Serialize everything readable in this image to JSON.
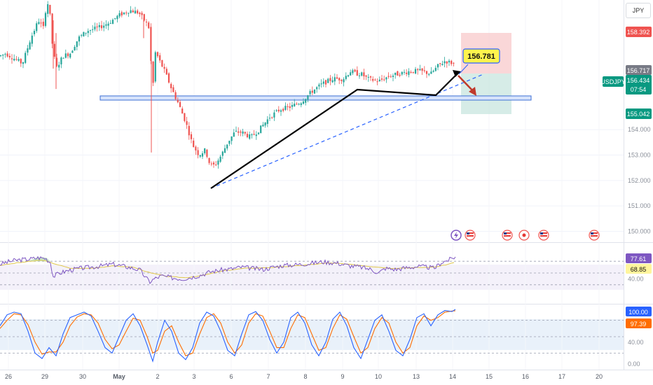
{
  "currency_button": "JPY",
  "symbol": "USDJPY",
  "countdown": "07:54",
  "callout_price": "156.781",
  "price_labels": {
    "stop": "158.392",
    "entry": "156.717",
    "current": "156.434",
    "target": "155.042"
  },
  "colors": {
    "up": "#26a69a",
    "down": "#ef5350",
    "rsi": "#7e57c2",
    "rsi_ma": "#e0c84a",
    "stoch_k": "#2962ff",
    "stoch_d": "#ff6d00",
    "stop_zone": "#f8c9cb",
    "target_zone": "#c8e6df",
    "trendline": "#1565c0"
  },
  "chart_data": [
    {
      "type": "candlestick",
      "symbol": "USDJPY",
      "ylim": [
        149.6,
        159.1
      ],
      "y_ticks": [
        "150.000",
        "151.000",
        "152.000",
        "153.000",
        "154.000"
      ],
      "x_ticks": [
        "26",
        "29",
        "30",
        "May",
        "2",
        "3",
        "6",
        "7",
        "8",
        "9",
        "10",
        "13",
        "14",
        "15",
        "16",
        "17",
        "20"
      ],
      "close_path": [
        [
          0,
          156.9
        ],
        [
          8,
          157.0
        ],
        [
          20,
          156.8
        ],
        [
          32,
          156.6
        ],
        [
          44,
          157.6
        ],
        [
          55,
          158.3
        ],
        [
          62,
          158.0
        ],
        [
          66,
          158.9
        ],
        [
          70,
          159.0
        ],
        [
          74,
          157.5
        ],
        [
          80,
          156.4
        ],
        [
          90,
          156.9
        ],
        [
          100,
          157.0
        ],
        [
          112,
          157.6
        ],
        [
          125,
          157.9
        ],
        [
          140,
          158.0
        ],
        [
          155,
          158.2
        ],
        [
          170,
          158.5
        ],
        [
          185,
          158.7
        ],
        [
          198,
          158.6
        ],
        [
          206,
          158.3
        ],
        [
          212,
          158.1
        ],
        [
          218,
          155.6
        ],
        [
          222,
          157.1
        ],
        [
          226,
          156.8
        ],
        [
          235,
          156.3
        ],
        [
          245,
          155.6
        ],
        [
          255,
          155.0
        ],
        [
          265,
          154.3
        ],
        [
          275,
          153.4
        ],
        [
          284,
          153.0
        ],
        [
          293,
          153.2
        ],
        [
          300,
          152.6
        ],
        [
          307,
          152.6
        ],
        [
          316,
          153.0
        ],
        [
          325,
          153.5
        ],
        [
          335,
          153.9
        ],
        [
          345,
          153.9
        ],
        [
          358,
          153.7
        ],
        [
          370,
          154.0
        ],
        [
          385,
          154.5
        ],
        [
          400,
          154.8
        ],
        [
          415,
          154.9
        ],
        [
          430,
          155.1
        ],
        [
          445,
          155.5
        ],
        [
          460,
          155.8
        ],
        [
          475,
          156.0
        ],
        [
          490,
          156.0
        ],
        [
          500,
          156.3
        ],
        [
          508,
          156.2
        ],
        [
          515,
          156.2
        ],
        [
          525,
          156.0
        ],
        [
          540,
          155.9
        ],
        [
          555,
          156.1
        ],
        [
          570,
          156.2
        ],
        [
          585,
          156.3
        ],
        [
          600,
          156.3
        ],
        [
          615,
          156.2
        ],
        [
          625,
          156.5
        ],
        [
          635,
          156.7
        ],
        [
          648,
          156.6
        ]
      ],
      "spikes": [
        [
          80,
          157.8,
          155.6
        ],
        [
          76,
          158.3,
          156.4
        ],
        [
          216,
          158.0,
          154.0
        ],
        [
          216,
          156.0,
          153.1
        ],
        [
          205,
          158.4,
          157.6
        ]
      ]
    },
    {
      "type": "line",
      "name": "RSI",
      "y_ticks": [
        "40.00"
      ],
      "last_values": [
        "77.61",
        "68.85"
      ],
      "rsi": [
        [
          0,
          65
        ],
        [
          15,
          70
        ],
        [
          25,
          72
        ],
        [
          35,
          73
        ],
        [
          45,
          74
        ],
        [
          55,
          76
        ],
        [
          65,
          75
        ],
        [
          72,
          68
        ],
        [
          76,
          44
        ],
        [
          85,
          50
        ],
        [
          100,
          55
        ],
        [
          115,
          58
        ],
        [
          130,
          60
        ],
        [
          145,
          62
        ],
        [
          160,
          65
        ],
        [
          175,
          62
        ],
        [
          190,
          58
        ],
        [
          200,
          55
        ],
        [
          208,
          42
        ],
        [
          214,
          35
        ],
        [
          220,
          40
        ],
        [
          230,
          45
        ],
        [
          245,
          42
        ],
        [
          260,
          40
        ],
        [
          270,
          42
        ],
        [
          285,
          46
        ],
        [
          300,
          52
        ],
        [
          315,
          55
        ],
        [
          330,
          57
        ],
        [
          345,
          60
        ],
        [
          360,
          58
        ],
        [
          375,
          56
        ],
        [
          390,
          60
        ],
        [
          405,
          63
        ],
        [
          420,
          64
        ],
        [
          440,
          66
        ],
        [
          460,
          69
        ],
        [
          480,
          67
        ],
        [
          500,
          62
        ],
        [
          515,
          60
        ],
        [
          530,
          56
        ],
        [
          540,
          50
        ],
        [
          550,
          58
        ],
        [
          565,
          56
        ],
        [
          580,
          59
        ],
        [
          595,
          61
        ],
        [
          610,
          60
        ],
        [
          620,
          58
        ],
        [
          630,
          68
        ],
        [
          640,
          72
        ],
        [
          650,
          77.6
        ]
      ],
      "ma": [
        [
          0,
          63
        ],
        [
          30,
          68
        ],
        [
          60,
          72
        ],
        [
          80,
          65
        ],
        [
          100,
          58
        ],
        [
          130,
          58
        ],
        [
          160,
          62
        ],
        [
          190,
          60
        ],
        [
          215,
          50
        ],
        [
          240,
          44
        ],
        [
          265,
          42
        ],
        [
          290,
          46
        ],
        [
          320,
          54
        ],
        [
          350,
          58
        ],
        [
          380,
          59
        ],
        [
          410,
          61
        ],
        [
          440,
          64
        ],
        [
          470,
          67
        ],
        [
          500,
          65
        ],
        [
          530,
          61
        ],
        [
          560,
          58
        ],
        [
          590,
          59
        ],
        [
          620,
          60
        ],
        [
          640,
          65
        ],
        [
          650,
          68.9
        ]
      ]
    },
    {
      "type": "line",
      "name": "Stochastic",
      "y_ticks": [
        "40.00",
        "0.00"
      ],
      "last_values": [
        "100.00",
        "97.39"
      ],
      "k": [
        [
          0,
          70
        ],
        [
          10,
          90
        ],
        [
          20,
          95
        ],
        [
          30,
          92
        ],
        [
          40,
          60
        ],
        [
          50,
          20
        ],
        [
          60,
          10
        ],
        [
          70,
          30
        ],
        [
          80,
          15
        ],
        [
          90,
          55
        ],
        [
          100,
          85
        ],
        [
          110,
          90
        ],
        [
          120,
          95
        ],
        [
          130,
          88
        ],
        [
          140,
          60
        ],
        [
          150,
          30
        ],
        [
          160,
          20
        ],
        [
          170,
          50
        ],
        [
          180,
          80
        ],
        [
          190,
          92
        ],
        [
          200,
          70
        ],
        [
          210,
          35
        ],
        [
          218,
          5
        ],
        [
          225,
          40
        ],
        [
          235,
          80
        ],
        [
          245,
          60
        ],
        [
          255,
          20
        ],
        [
          265,
          8
        ],
        [
          275,
          30
        ],
        [
          285,
          75
        ],
        [
          295,
          95
        ],
        [
          305,
          88
        ],
        [
          315,
          60
        ],
        [
          325,
          25
        ],
        [
          335,
          15
        ],
        [
          345,
          55
        ],
        [
          355,
          90
        ],
        [
          365,
          96
        ],
        [
          375,
          80
        ],
        [
          385,
          45
        ],
        [
          395,
          20
        ],
        [
          405,
          40
        ],
        [
          415,
          85
        ],
        [
          425,
          95
        ],
        [
          435,
          75
        ],
        [
          445,
          35
        ],
        [
          455,
          15
        ],
        [
          465,
          40
        ],
        [
          475,
          82
        ],
        [
          485,
          95
        ],
        [
          495,
          70
        ],
        [
          505,
          30
        ],
        [
          515,
          10
        ],
        [
          525,
          45
        ],
        [
          535,
          80
        ],
        [
          545,
          90
        ],
        [
          555,
          60
        ],
        [
          565,
          25
        ],
        [
          575,
          15
        ],
        [
          585,
          45
        ],
        [
          595,
          85
        ],
        [
          605,
          92
        ],
        [
          615,
          70
        ],
        [
          625,
          90
        ],
        [
          635,
          98
        ],
        [
          645,
          96
        ],
        [
          650,
          100
        ]
      ],
      "d": [
        [
          0,
          65
        ],
        [
          10,
          80
        ],
        [
          20,
          92
        ],
        [
          30,
          90
        ],
        [
          40,
          72
        ],
        [
          50,
          40
        ],
        [
          60,
          18
        ],
        [
          70,
          22
        ],
        [
          80,
          22
        ],
        [
          90,
          40
        ],
        [
          100,
          70
        ],
        [
          110,
          86
        ],
        [
          120,
          92
        ],
        [
          130,
          90
        ],
        [
          140,
          75
        ],
        [
          150,
          45
        ],
        [
          160,
          28
        ],
        [
          170,
          35
        ],
        [
          180,
          60
        ],
        [
          190,
          84
        ],
        [
          200,
          80
        ],
        [
          210,
          50
        ],
        [
          218,
          20
        ],
        [
          225,
          25
        ],
        [
          235,
          60
        ],
        [
          245,
          70
        ],
        [
          255,
          40
        ],
        [
          265,
          15
        ],
        [
          275,
          20
        ],
        [
          285,
          55
        ],
        [
          295,
          85
        ],
        [
          305,
          92
        ],
        [
          315,
          75
        ],
        [
          325,
          40
        ],
        [
          335,
          20
        ],
        [
          345,
          35
        ],
        [
          355,
          75
        ],
        [
          365,
          92
        ],
        [
          375,
          88
        ],
        [
          385,
          60
        ],
        [
          395,
          30
        ],
        [
          405,
          30
        ],
        [
          415,
          65
        ],
        [
          425,
          90
        ],
        [
          435,
          85
        ],
        [
          445,
          55
        ],
        [
          455,
          25
        ],
        [
          465,
          30
        ],
        [
          475,
          65
        ],
        [
          485,
          90
        ],
        [
          495,
          82
        ],
        [
          505,
          50
        ],
        [
          515,
          20
        ],
        [
          525,
          30
        ],
        [
          535,
          65
        ],
        [
          545,
          85
        ],
        [
          555,
          75
        ],
        [
          565,
          40
        ],
        [
          575,
          20
        ],
        [
          585,
          30
        ],
        [
          595,
          70
        ],
        [
          605,
          88
        ],
        [
          615,
          80
        ],
        [
          625,
          85
        ],
        [
          635,
          95
        ],
        [
          645,
          97
        ],
        [
          650,
          97.4
        ]
      ]
    }
  ]
}
